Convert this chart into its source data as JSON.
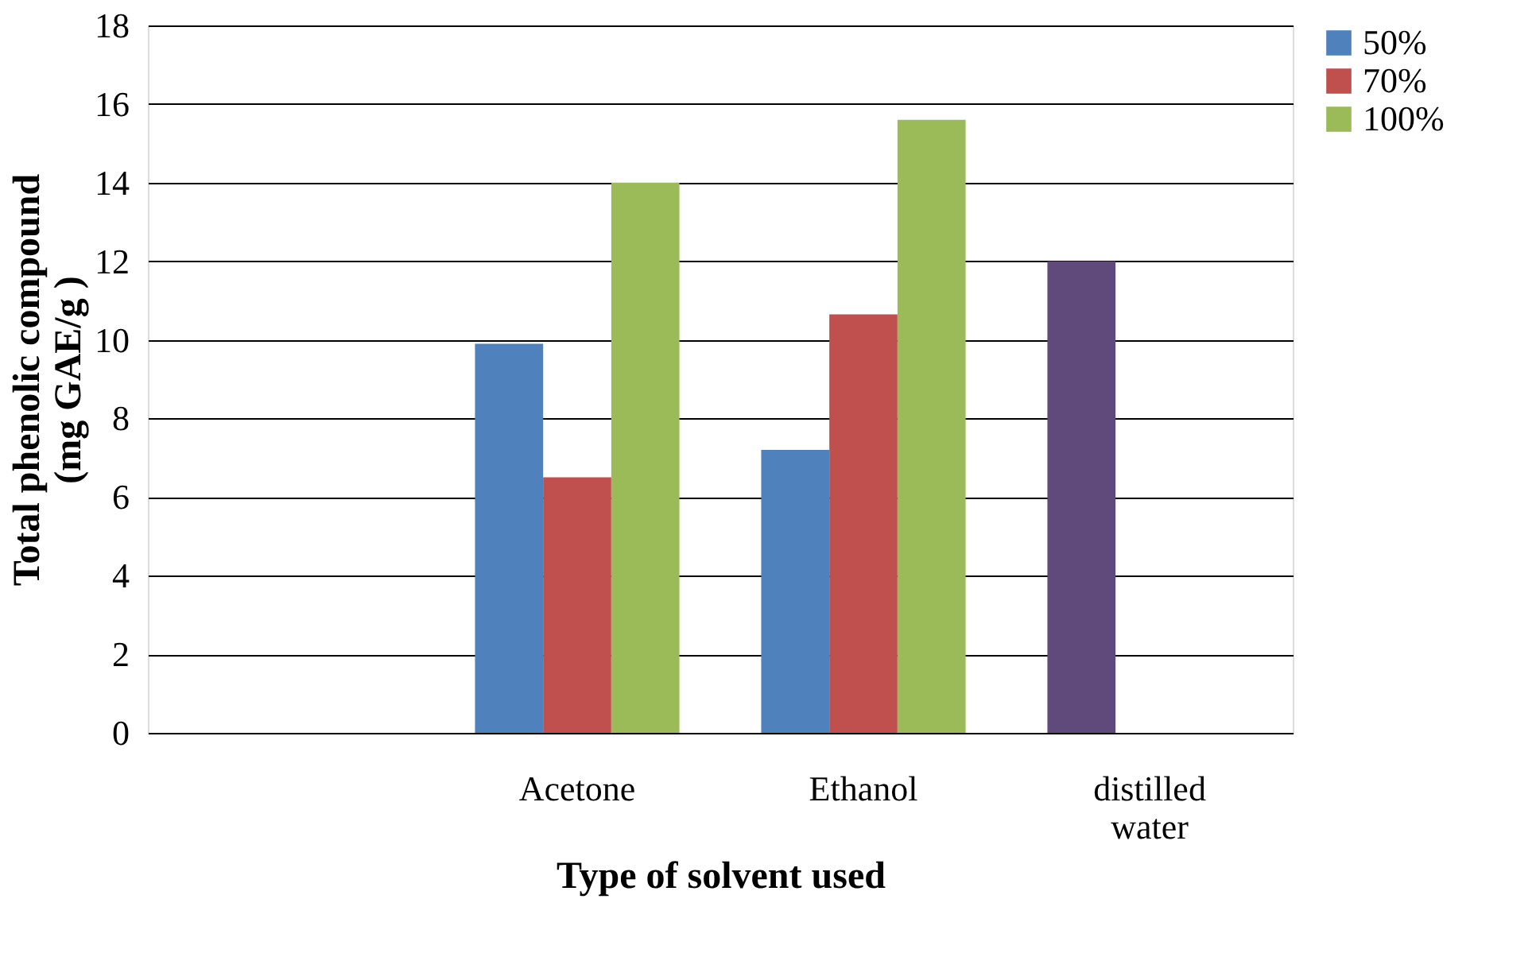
{
  "chart_data": {
    "type": "bar",
    "xlabel": "Type of solvent used",
    "ylabel": "Total phenolic compound (mg GAE/g )",
    "categories": [
      null,
      "Acetone",
      "Ethanol",
      "distilled water"
    ],
    "series": [
      {
        "name": "50%",
        "color": "#4f81bd",
        "values": [
          null,
          9.9,
          7.2,
          12.0
        ],
        "colors": [
          "#4f81bd",
          "#4f81bd",
          "#4f81bd",
          "#604a7b"
        ]
      },
      {
        "name": "70%",
        "color": "#c0504d",
        "values": [
          null,
          6.5,
          10.65,
          null
        ]
      },
      {
        "name": "100%",
        "color": "#9bbb59",
        "values": [
          null,
          14.0,
          15.6,
          null
        ]
      }
    ],
    "ylim": [
      0,
      18
    ],
    "yticks": [
      0,
      2,
      4,
      6,
      8,
      10,
      12,
      14,
      16,
      18
    ],
    "grid": "y",
    "legend": "right"
  }
}
